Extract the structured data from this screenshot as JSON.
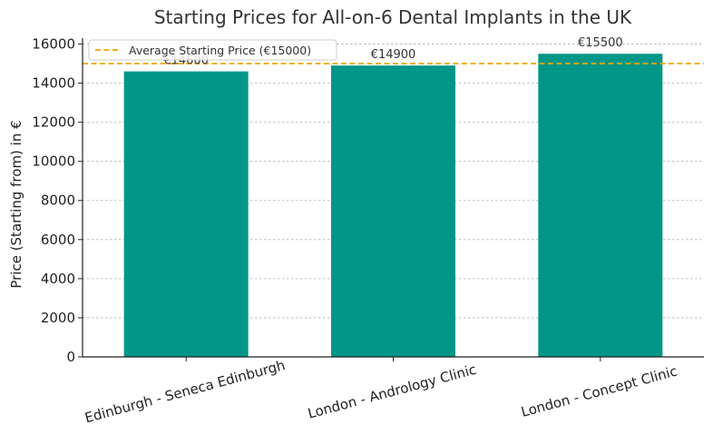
{
  "chart_data": {
    "type": "bar",
    "title": "Starting Prices for All-on-6 Dental Implants in the UK",
    "xlabel": "",
    "ylabel": "Price (Starting from) in €",
    "categories": [
      "Edinburgh - Seneca Edinburgh",
      "London - Andrology Clinic",
      "London - Concept Clinic"
    ],
    "values": [
      14600,
      14900,
      15500
    ],
    "data_labels": [
      "€14600",
      "€14900",
      "€15500"
    ],
    "ylim": [
      0,
      16300
    ],
    "yticks": [
      0,
      2000,
      4000,
      6000,
      8000,
      10000,
      12000,
      14000,
      16000
    ],
    "reference_line": {
      "label": "Average Starting Price (€15000)",
      "value": 15000,
      "color": "#f0a500"
    },
    "bar_color": "#009688",
    "grid": true,
    "legend_position": "top-left"
  }
}
